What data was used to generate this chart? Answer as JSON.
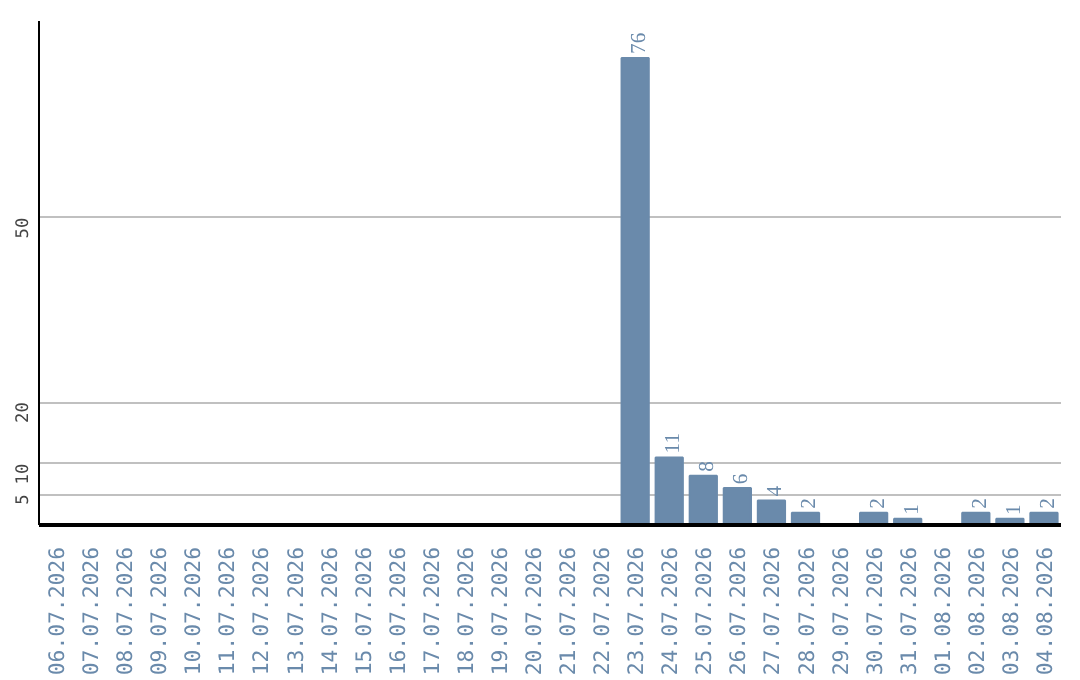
{
  "chart_data": {
    "type": "bar",
    "categories": [
      "06.07.2026",
      "07.07.2026",
      "08.07.2026",
      "09.07.2026",
      "10.07.2026",
      "11.07.2026",
      "12.07.2026",
      "13.07.2026",
      "14.07.2026",
      "15.07.2026",
      "16.07.2026",
      "17.07.2026",
      "18.07.2026",
      "19.07.2026",
      "20.07.2026",
      "21.07.2026",
      "22.07.2026",
      "23.07.2026",
      "24.07.2026",
      "25.07.2026",
      "26.07.2026",
      "27.07.2026",
      "28.07.2026",
      "29.07.2026",
      "30.07.2026",
      "31.07.2026",
      "01.08.2026",
      "02.08.2026",
      "03.08.2026",
      "04.08.2026"
    ],
    "values": [
      0,
      0,
      0,
      0,
      0,
      0,
      0,
      0,
      0,
      0,
      0,
      0,
      0,
      0,
      0,
      0,
      0,
      76,
      11,
      8,
      6,
      4,
      2,
      0,
      2,
      1,
      0,
      2,
      1,
      2
    ],
    "value_labels": [
      null,
      null,
      null,
      null,
      null,
      null,
      null,
      null,
      null,
      null,
      null,
      null,
      null,
      null,
      null,
      null,
      null,
      "76",
      "11",
      "8",
      "6",
      "4",
      "2",
      null,
      "2",
      "1",
      null,
      "2",
      "1",
      "2"
    ],
    "color": "#6a8aab",
    "ylim": [
      0,
      82
    ],
    "yticks": [
      5,
      10,
      20,
      50
    ],
    "grid": "y"
  }
}
